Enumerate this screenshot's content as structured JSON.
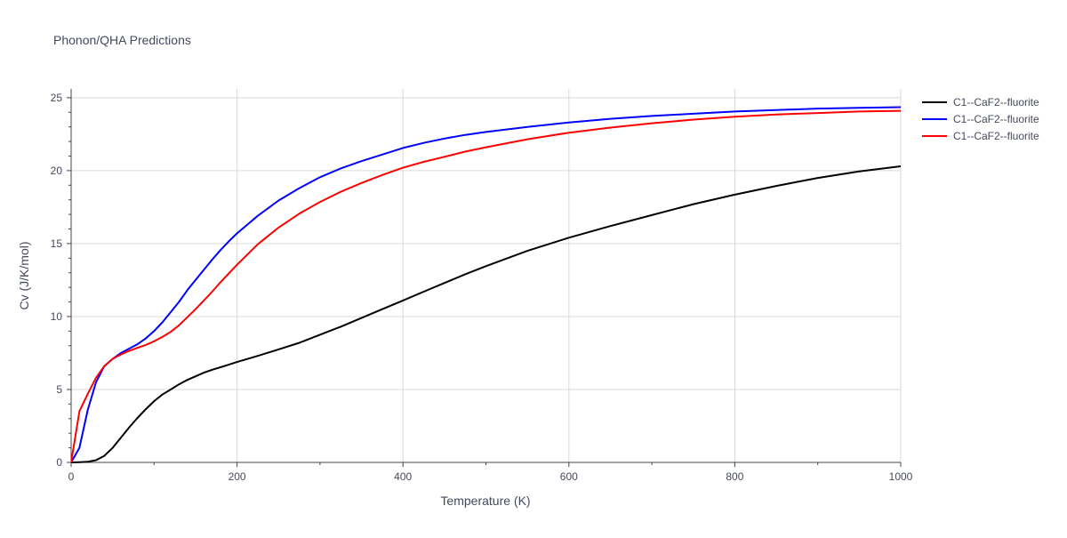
{
  "chart_data": {
    "type": "line",
    "title": "Phonon/QHA Predictions",
    "xlabel": "Temperature (K)",
    "ylabel": "Cv (J/K/mol)",
    "xlim": [
      0,
      1000
    ],
    "ylim": [
      0,
      25.6
    ],
    "xticks": [
      0,
      200,
      400,
      600,
      800,
      1000
    ],
    "yticks": [
      0,
      5,
      10,
      15,
      20,
      25
    ],
    "grid": true,
    "legend_position": "top-right",
    "series": [
      {
        "name": "C1--CaF2--fluorite",
        "color": "#000000",
        "x": [
          0,
          10,
          20,
          30,
          40,
          50,
          60,
          70,
          80,
          90,
          100,
          110,
          120,
          130,
          140,
          150,
          160,
          170,
          180,
          190,
          200,
          225,
          250,
          275,
          300,
          325,
          350,
          375,
          400,
          425,
          450,
          475,
          500,
          550,
          600,
          650,
          700,
          750,
          800,
          850,
          900,
          950,
          1000
        ],
        "y": [
          0,
          0.02,
          0.05,
          0.15,
          0.45,
          1.0,
          1.7,
          2.4,
          3.05,
          3.65,
          4.2,
          4.65,
          5.0,
          5.35,
          5.65,
          5.9,
          6.15,
          6.35,
          6.52,
          6.7,
          6.88,
          7.3,
          7.75,
          8.2,
          8.75,
          9.3,
          9.9,
          10.5,
          11.1,
          11.7,
          12.3,
          12.9,
          13.45,
          14.5,
          15.4,
          16.2,
          16.95,
          17.7,
          18.35,
          18.95,
          19.5,
          19.95,
          20.3
        ]
      },
      {
        "name": "C1--CaF2--fluorite",
        "color": "#0000ff",
        "x": [
          0,
          10,
          20,
          30,
          40,
          50,
          60,
          70,
          80,
          90,
          100,
          110,
          120,
          130,
          140,
          150,
          160,
          170,
          180,
          190,
          200,
          225,
          250,
          275,
          300,
          325,
          350,
          375,
          400,
          425,
          450,
          475,
          500,
          550,
          600,
          650,
          700,
          750,
          800,
          850,
          900,
          950,
          1000
        ],
        "y": [
          0,
          1.0,
          3.6,
          5.5,
          6.6,
          7.1,
          7.5,
          7.8,
          8.1,
          8.5,
          9.0,
          9.6,
          10.3,
          11.0,
          11.8,
          12.5,
          13.2,
          13.9,
          14.55,
          15.15,
          15.7,
          16.9,
          17.95,
          18.8,
          19.55,
          20.15,
          20.65,
          21.1,
          21.55,
          21.9,
          22.2,
          22.45,
          22.65,
          23.0,
          23.3,
          23.55,
          23.75,
          23.9,
          24.05,
          24.15,
          24.25,
          24.3,
          24.35
        ]
      },
      {
        "name": "C1--CaF2--fluorite",
        "color": "#ff0000",
        "x": [
          0,
          10,
          20,
          30,
          40,
          50,
          60,
          70,
          80,
          90,
          100,
          110,
          120,
          130,
          140,
          150,
          160,
          170,
          180,
          190,
          200,
          225,
          250,
          275,
          300,
          325,
          350,
          375,
          400,
          425,
          450,
          475,
          500,
          550,
          600,
          650,
          700,
          750,
          800,
          850,
          900,
          950,
          1000
        ],
        "y": [
          0,
          3.5,
          4.7,
          5.8,
          6.6,
          7.1,
          7.4,
          7.65,
          7.85,
          8.05,
          8.3,
          8.6,
          8.95,
          9.4,
          9.95,
          10.5,
          11.1,
          11.7,
          12.35,
          12.95,
          13.55,
          14.95,
          16.1,
          17.05,
          17.85,
          18.55,
          19.15,
          19.7,
          20.2,
          20.6,
          20.95,
          21.3,
          21.6,
          22.15,
          22.6,
          22.95,
          23.25,
          23.5,
          23.7,
          23.85,
          23.95,
          24.05,
          24.1
        ]
      }
    ]
  }
}
